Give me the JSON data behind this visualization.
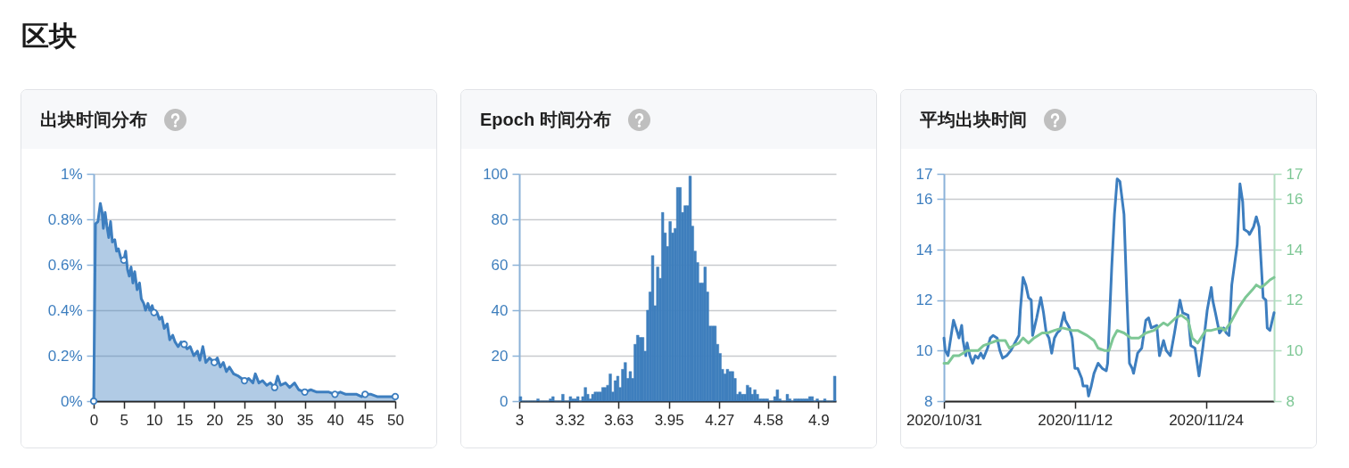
{
  "chart_data": [
    {
      "type": "area",
      "title": "出块时间分布",
      "annotations": [
        "区块"
      ],
      "series": [
        {
          "type": "area",
          "color": "#3d7ebf",
          "x": [
            0,
            0.3,
            0.7,
            1.1,
            1.4,
            1.6,
            1.9,
            2.2,
            2.5,
            2.8,
            3.1,
            3.5,
            3.8,
            4.1,
            4.5,
            5,
            5.3,
            5.6,
            5.9,
            6.2,
            6.5,
            6.8,
            7.2,
            7.6,
            7.9,
            8.3,
            8.6,
            9,
            9.3,
            9.7,
            10,
            10.5,
            10.9,
            11.3,
            11.7,
            12.2,
            12.6,
            13.1,
            13.5,
            14,
            14.5,
            15,
            15.5,
            16,
            16.6,
            17.2,
            17.6,
            18.1,
            18.6,
            19.2,
            20,
            20.5,
            21,
            21.5,
            22,
            22.5,
            23.2,
            24,
            25,
            25.7,
            26.4,
            26.8,
            27.4,
            28,
            28.7,
            29.3,
            30,
            30.5,
            31,
            31.8,
            32.5,
            33.3,
            34,
            35,
            36,
            37,
            38,
            39,
            40,
            40.9,
            41.8,
            42.6,
            43.6,
            44.4,
            45,
            46,
            47,
            48,
            49,
            50
          ],
          "values": [
            0,
            0.78,
            0.79,
            0.87,
            0.83,
            0.76,
            0.83,
            0.77,
            0.72,
            0.79,
            0.7,
            0.71,
            0.66,
            0.67,
            0.63,
            0.62,
            0.66,
            0.58,
            0.55,
            0.59,
            0.52,
            0.57,
            0.49,
            0.52,
            0.45,
            0.43,
            0.4,
            0.43,
            0.4,
            0.42,
            0.39,
            0.39,
            0.36,
            0.37,
            0.32,
            0.34,
            0.27,
            0.29,
            0.26,
            0.24,
            0.26,
            0.25,
            0.23,
            0.24,
            0.2,
            0.22,
            0.18,
            0.24,
            0.17,
            0.19,
            0.17,
            0.19,
            0.15,
            0.17,
            0.13,
            0.15,
            0.12,
            0.11,
            0.09,
            0.1,
            0.08,
            0.12,
            0.08,
            0.09,
            0.07,
            0.08,
            0.06,
            0.11,
            0.07,
            0.08,
            0.06,
            0.08,
            0.05,
            0.04,
            0.05,
            0.04,
            0.04,
            0.04,
            0.03,
            0.04,
            0.03,
            0.03,
            0.03,
            0.02,
            0.03,
            0.03,
            0.02,
            0.02,
            0.02,
            0.02
          ]
        },
        {
          "type": "scatter",
          "color": "#3d7ebf",
          "marker": "circle",
          "x": [
            0,
            5,
            10,
            15,
            20,
            25,
            30,
            35,
            40,
            45,
            50
          ],
          "values": [
            0,
            0.62,
            0.39,
            0.25,
            0.17,
            0.09,
            0.06,
            0.04,
            0.03,
            0.03,
            0.02
          ]
        }
      ],
      "xlim": [
        0,
        50
      ],
      "xticks": [
        0,
        5,
        10,
        15,
        20,
        25,
        30,
        35,
        40,
        45,
        50
      ],
      "ylim": [
        0,
        1
      ],
      "yticks": [
        {
          "value": 0,
          "label": "0%"
        },
        {
          "value": 0.2,
          "label": "0.2%"
        },
        {
          "value": 0.4,
          "label": "0.4%"
        },
        {
          "value": 0.6,
          "label": "0.6%"
        },
        {
          "value": 0.8,
          "label": "0.8%"
        },
        {
          "value": 1,
          "label": "1%"
        }
      ],
      "grid": "y"
    },
    {
      "type": "histogram",
      "title": "Epoch 时间分布",
      "color": "#3f7fbd",
      "bins": [
        3,
        3.016,
        3.032,
        3.048,
        3.063,
        3.079,
        3.095,
        3.111,
        3.127,
        3.143,
        3.158,
        3.174,
        3.19,
        3.206,
        3.222,
        3.238,
        3.253,
        3.269,
        3.285,
        3.301,
        3.317,
        3.333,
        3.348,
        3.364,
        3.38,
        3.396,
        3.412,
        3.428,
        3.443,
        3.459,
        3.475,
        3.491,
        3.507,
        3.523,
        3.538,
        3.554,
        3.57,
        3.586,
        3.602,
        3.618,
        3.633,
        3.649,
        3.665,
        3.681,
        3.697,
        3.713,
        3.728,
        3.744,
        3.76,
        3.776,
        3.792,
        3.808,
        3.823,
        3.839,
        3.855,
        3.871,
        3.887,
        3.903,
        3.918,
        3.934,
        3.95,
        3.966,
        3.982,
        3.998,
        4.013,
        4.029,
        4.045,
        4.061,
        4.077,
        4.093,
        4.108,
        4.124,
        4.14,
        4.156,
        4.172,
        4.188,
        4.203,
        4.219,
        4.235,
        4.251,
        4.267,
        4.283,
        4.298,
        4.314,
        4.33,
        4.346,
        4.362,
        4.378,
        4.393,
        4.409,
        4.425,
        4.441,
        4.457,
        4.473,
        4.488,
        4.504,
        4.52,
        4.536,
        4.552,
        4.568,
        4.583,
        4.599,
        4.615,
        4.631,
        4.647,
        4.663,
        4.678,
        4.694,
        4.71,
        4.726,
        4.742,
        4.758,
        4.773,
        4.789,
        4.805,
        4.821,
        4.837,
        4.853,
        4.868,
        4.884,
        4.9,
        4.916,
        4.932,
        4.948,
        4.963,
        4.979,
        4.995,
        5.011
      ],
      "values": [
        2,
        0,
        0,
        0,
        0,
        0,
        0,
        1,
        0,
        0,
        0,
        0,
        1,
        2,
        0,
        0,
        0,
        3,
        0,
        0,
        2,
        1,
        1,
        2,
        0,
        2,
        6,
        3,
        1,
        3,
        4,
        4,
        4,
        6,
        6,
        7,
        12,
        4,
        9,
        11,
        6,
        14,
        17,
        10,
        13,
        10,
        25,
        29,
        28,
        28,
        22,
        40,
        48,
        64,
        42,
        59,
        54,
        83,
        74,
        68,
        79,
        74,
        76,
        94,
        94,
        83,
        86,
        86,
        99,
        77,
        66,
        61,
        52,
        52,
        59,
        48,
        33,
        33,
        33,
        25,
        21,
        14,
        12,
        14,
        13,
        13,
        10,
        3,
        4,
        3,
        3,
        7,
        6,
        3,
        5,
        3,
        1,
        1,
        1,
        1,
        0,
        0,
        2,
        5,
        1,
        0,
        0,
        3,
        1,
        0,
        1,
        1,
        1,
        1,
        1,
        1,
        2,
        2,
        0,
        1,
        0,
        0,
        1,
        0,
        0,
        0,
        11
      ],
      "xlim": [
        3,
        5.011
      ],
      "xticks": [
        3,
        3.32,
        3.63,
        3.95,
        4.27,
        4.58,
        4.9
      ],
      "ylim": [
        0,
        100
      ],
      "yticks": [
        0,
        20,
        40,
        60,
        80,
        100
      ],
      "grid": "y"
    },
    {
      "type": "line",
      "title": "平均出块时间",
      "series": [
        {
          "color": "#3d7ebf",
          "x": [
            "2020-10-31T00:00",
            "2020-10-31T03:00",
            "2020-10-31T09:00",
            "2020-10-31T21:00",
            "2020-11-01T06:00",
            "2020-11-01T09:00",
            "2020-11-01T15:00",
            "2020-11-01T18:00",
            "2020-11-02T00:00",
            "2020-11-02T03:00",
            "2020-11-02T09:00",
            "2020-11-02T15:00",
            "2020-11-02T21:00",
            "2020-11-03T03:00",
            "2020-11-03T09:00",
            "2020-11-03T15:00",
            "2020-11-04T00:00",
            "2020-11-04T06:00",
            "2020-11-04T12:00",
            "2020-11-04T21:00",
            "2020-11-05T03:00",
            "2020-11-05T09:00",
            "2020-11-05T18:00",
            "2020-11-06T03:00",
            "2020-11-06T12:00",
            "2020-11-06T21:00",
            "2020-11-07T00:00",
            "2020-11-07T06:00",
            "2020-11-07T12:00",
            "2020-11-07T18:00",
            "2020-11-08T00:00",
            "2020-11-08T03:00",
            "2020-11-08T12:00",
            "2020-11-08T21:00",
            "2020-11-09T03:00",
            "2020-11-09T09:00",
            "2020-11-09T15:00",
            "2020-11-09T21:00",
            "2020-11-10T03:00",
            "2020-11-10T09:00",
            "2020-11-10T15:00",
            "2020-11-11T00:00",
            "2020-11-11T03:00",
            "2020-11-11T12:00",
            "2020-11-11T18:00",
            "2020-11-12T00:00",
            "2020-11-12T06:00",
            "2020-11-12T15:00",
            "2020-11-12T18:00",
            "2020-11-13T03:00",
            "2020-11-13T06:00",
            "2020-11-13T12:00",
            "2020-11-13T18:00",
            "2020-11-14T03:00",
            "2020-11-14T12:00",
            "2020-11-14T21:00",
            "2020-11-15T00:00",
            "2020-11-15T09:00",
            "2020-11-15T15:00",
            "2020-11-15T21:00",
            "2020-11-16T03:00",
            "2020-11-16T12:00",
            "2020-11-16T18:00",
            "2020-11-17T00:00",
            "2020-11-17T06:00",
            "2020-11-17T09:00",
            "2020-11-17T18:00",
            "2020-11-18T03:00",
            "2020-11-18T12:00",
            "2020-11-18T18:00",
            "2020-11-19T00:00",
            "2020-11-19T12:00",
            "2020-11-19T18:00",
            "2020-11-20T03:00",
            "2020-11-20T09:00",
            "2020-11-20T18:00",
            "2020-11-21T03:00",
            "2020-11-21T15:00",
            "2020-11-21T21:00",
            "2020-11-22T09:00",
            "2020-11-22T15:00",
            "2020-11-23T00:00",
            "2020-11-23T09:00",
            "2020-11-23T18:00",
            "2020-11-24T03:00",
            "2020-11-24T12:00",
            "2020-11-24T15:00",
            "2020-11-24T21:00",
            "2020-11-25T06:00",
            "2020-11-25T15:00",
            "2020-11-25T21:00",
            "2020-11-26T03:00",
            "2020-11-26T09:00",
            "2020-11-26T21:00",
            "2020-11-27T03:00",
            "2020-11-27T09:00",
            "2020-11-27T12:00",
            "2020-11-27T21:00",
            "2020-11-28T00:00",
            "2020-11-28T09:00",
            "2020-11-28T15:00",
            "2020-11-28T21:00",
            "2020-11-29T06:00",
            "2020-11-29T12:00",
            "2020-11-29T15:00",
            "2020-11-29T21:00",
            "2020-11-30T06:00"
          ],
          "values": [
            10.5,
            10.0,
            9.8,
            11.2,
            10.7,
            10.5,
            11.0,
            10.4,
            9.8,
            10.3,
            9.8,
            9.5,
            9.8,
            9.7,
            9.9,
            9.7,
            10.1,
            10.5,
            10.6,
            10.5,
            10.0,
            9.7,
            9.8,
            10.0,
            10.3,
            10.6,
            11.6,
            12.9,
            12.6,
            12.1,
            12.0,
            10.6,
            11.3,
            12.1,
            11.5,
            10.7,
            10.5,
            9.9,
            10.5,
            10.7,
            10.8,
            11.5,
            11.2,
            10.9,
            10.5,
            9.3,
            9.3,
            8.9,
            8.6,
            8.6,
            8.2,
            8.6,
            9.1,
            9.5,
            9.3,
            9.2,
            9.5,
            13.3,
            15.4,
            16.8,
            16.7,
            15.4,
            12.3,
            9.5,
            9.3,
            9.1,
            9.9,
            10.1,
            11.2,
            11.3,
            10.9,
            11.0,
            9.8,
            10.4,
            10.0,
            9.8,
            10.7,
            12.0,
            11.5,
            11.4,
            10.2,
            10.1,
            9.0,
            10.2,
            11.6,
            12.5,
            12.0,
            11.5,
            10.7,
            10.9,
            10.7,
            10.6,
            12.6,
            14.2,
            16.6,
            15.9,
            14.8,
            14.7,
            14.6,
            14.9,
            15.3,
            14.9,
            12.1,
            12.0,
            10.9,
            10.8,
            11.5
          ]
        },
        {
          "color": "#7dc795",
          "axis": "y2",
          "x": [
            "2020-10-31T00:00",
            "2020-10-31T09:00",
            "2020-10-31T21:00",
            "2020-11-01T09:00",
            "2020-11-01T18:00",
            "2020-11-02T03:00",
            "2020-11-02T18:00",
            "2020-11-03T03:00",
            "2020-11-03T15:00",
            "2020-11-04T06:00",
            "2020-11-04T21:00",
            "2020-11-05T15:00",
            "2020-11-06T00:00",
            "2020-11-06T09:00",
            "2020-11-06T21:00",
            "2020-11-07T06:00",
            "2020-11-07T18:00",
            "2020-11-08T06:00",
            "2020-11-09T00:00",
            "2020-11-09T12:00",
            "2020-11-10T03:00",
            "2020-11-10T21:00",
            "2020-11-11T18:00",
            "2020-11-12T06:00",
            "2020-11-13T03:00",
            "2020-11-13T18:00",
            "2020-11-14T03:00",
            "2020-11-14T18:00",
            "2020-11-15T03:00",
            "2020-11-15T12:00",
            "2020-11-15T21:00",
            "2020-11-16T12:00",
            "2020-11-17T03:00",
            "2020-11-17T21:00",
            "2020-11-18T12:00",
            "2020-11-19T06:00",
            "2020-11-20T03:00",
            "2020-11-20T12:00",
            "2020-11-21T06:00",
            "2020-11-21T18:00",
            "2020-11-22T09:00",
            "2020-11-22T18:00",
            "2020-11-23T06:00",
            "2020-11-24T00:00",
            "2020-11-24T12:00",
            "2020-11-25T09:00",
            "2020-11-25T18:00",
            "2020-11-26T06:00",
            "2020-11-27T00:00",
            "2020-11-27T15:00",
            "2020-11-28T06:00",
            "2020-11-28T15:00",
            "2020-11-29T00:00",
            "2020-11-29T09:00",
            "2020-11-29T21:00",
            "2020-11-30T06:00"
          ],
          "values": [
            9.5,
            9.5,
            9.8,
            9.8,
            9.9,
            10.0,
            10.0,
            10.0,
            10.2,
            10.3,
            10.4,
            10.4,
            10.1,
            10.2,
            10.3,
            10.5,
            10.3,
            10.5,
            10.7,
            10.7,
            10.8,
            10.9,
            10.8,
            10.8,
            10.6,
            10.4,
            10.1,
            10.0,
            10.0,
            10.5,
            10.8,
            10.7,
            10.5,
            10.5,
            10.7,
            10.8,
            11.1,
            11.0,
            11.3,
            11.4,
            11.2,
            10.5,
            10.3,
            10.8,
            10.8,
            10.9,
            10.8,
            11.1,
            11.7,
            12.1,
            12.4,
            12.6,
            12.5,
            12.6,
            12.8,
            12.9
          ]
        }
      ],
      "xlim": [
        "2020-10-31",
        "2020-11-30T06:00"
      ],
      "xticks": [
        {
          "value": "2020-10-31",
          "label": "2020/10/31"
        },
        {
          "value": "2020-11-12",
          "label": "2020/11/12"
        },
        {
          "value": "2020-11-24",
          "label": "2020/11/24"
        }
      ],
      "ylim": [
        8,
        17
      ],
      "yticks": [
        8,
        10,
        12,
        14,
        16,
        17
      ],
      "y2lim": [
        8,
        17
      ],
      "y2ticks": [
        8,
        10,
        12,
        14,
        16,
        17
      ],
      "grid": "y"
    }
  ]
}
